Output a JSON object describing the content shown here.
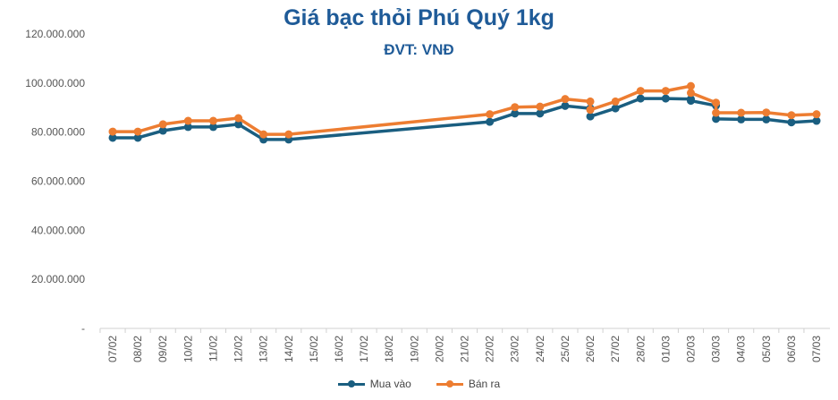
{
  "chart_data": {
    "type": "line",
    "title": "Giá bạc thỏi Phú Quý 1kg",
    "subtitle": "ĐVT: VNĐ",
    "xlabel": "",
    "ylabel": "",
    "ylim": [
      0,
      120000000
    ],
    "y_ticks": [
      {
        "value": 0,
        "label": "-"
      },
      {
        "value": 20000000,
        "label": "20.000.000"
      },
      {
        "value": 40000000,
        "label": "40.000.000"
      },
      {
        "value": 60000000,
        "label": "60.000.000"
      },
      {
        "value": 80000000,
        "label": "80.000.000"
      },
      {
        "value": 100000000,
        "label": "100.000.000"
      },
      {
        "value": 120000000,
        "label": "120.000.000"
      }
    ],
    "categories": [
      "07/02",
      "08/02",
      "09/02",
      "10/02",
      "11/02",
      "12/02",
      "13/02",
      "14/02",
      "15/02",
      "16/02",
      "17/02",
      "18/02",
      "19/02",
      "20/02",
      "21/02",
      "22/02",
      "23/02",
      "24/02",
      "25/02",
      "26/02",
      "27/02",
      "28/02",
      "01/03",
      "02/03",
      "03/03",
      "04/03",
      "05/03",
      "06/03",
      "07/03"
    ],
    "grid": false,
    "legend_position": "bottom",
    "series": [
      {
        "name": "Mua vào",
        "color": "#1a5e80",
        "points": [
          [
            "07/02",
            77700000
          ],
          [
            "08/02",
            77700000
          ],
          [
            "09/02",
            80600000
          ],
          [
            "10/02",
            82100000
          ],
          [
            "11/02",
            82100000
          ],
          [
            "12/02",
            83200000
          ],
          [
            "13/02",
            77000000
          ],
          [
            "14/02",
            77000000
          ],
          [
            "22/02",
            84200000
          ],
          [
            "23/02",
            87600000
          ],
          [
            "24/02",
            87600000
          ],
          [
            "25/02",
            90700000
          ],
          [
            "26/02",
            89700000
          ],
          [
            "26/02",
            86400000
          ],
          [
            "27/02",
            89700000
          ],
          [
            "28/02",
            93700000
          ],
          [
            "01/03",
            93700000
          ],
          [
            "02/03",
            93500000
          ],
          [
            "02/03",
            92800000
          ],
          [
            "03/03",
            90800000
          ],
          [
            "03/03",
            85400000
          ],
          [
            "04/03",
            85200000
          ],
          [
            "05/03",
            85200000
          ],
          [
            "06/03",
            84000000
          ],
          [
            "07/03",
            84600000
          ]
        ]
      },
      {
        "name": "Bán ra",
        "color": "#ed7d31",
        "points": [
          [
            "07/02",
            80200000
          ],
          [
            "08/02",
            80200000
          ],
          [
            "09/02",
            83200000
          ],
          [
            "10/02",
            84600000
          ],
          [
            "11/02",
            84600000
          ],
          [
            "12/02",
            85700000
          ],
          [
            "13/02",
            79100000
          ],
          [
            "14/02",
            79100000
          ],
          [
            "22/02",
            87300000
          ],
          [
            "23/02",
            90200000
          ],
          [
            "24/02",
            90400000
          ],
          [
            "25/02",
            93500000
          ],
          [
            "26/02",
            92500000
          ],
          [
            "26/02",
            89100000
          ],
          [
            "27/02",
            92500000
          ],
          [
            "28/02",
            96800000
          ],
          [
            "01/03",
            96800000
          ],
          [
            "02/03",
            98800000
          ],
          [
            "02/03",
            96000000
          ],
          [
            "03/03",
            92000000
          ],
          [
            "03/03",
            87900000
          ],
          [
            "04/03",
            87900000
          ],
          [
            "05/03",
            88000000
          ],
          [
            "06/03",
            86900000
          ],
          [
            "07/03",
            87300000
          ]
        ]
      }
    ]
  }
}
